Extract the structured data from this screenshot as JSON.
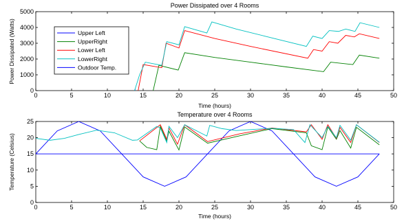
{
  "chart_data": [
    {
      "type": "line",
      "title": "Power Dissipated over 4 Rooms",
      "xlabel": "Time (hours)",
      "ylabel": "Power Dissipated (Watts)",
      "xlim": [
        0,
        50
      ],
      "ylim": [
        0,
        5000
      ],
      "xticks": [
        0,
        5,
        10,
        15,
        20,
        25,
        30,
        35,
        40,
        45,
        50
      ],
      "yticks": [
        0,
        1000,
        2000,
        3000,
        4000,
        5000
      ],
      "grid": false,
      "legend": {
        "position": "upper-left"
      },
      "series": [
        {
          "name": "Upper Left",
          "color": "#0000ff",
          "x": [
            13.8,
            13.9
          ],
          "y": [
            0,
            100
          ]
        },
        {
          "name": "UpperRight",
          "color": "#008000",
          "x": [
            16.4,
            17.2,
            19.9,
            20.8,
            25,
            30,
            35,
            40.2,
            41.2,
            44.3,
            45.2,
            48
          ],
          "y": [
            0,
            1600,
            1300,
            2400,
            2100,
            1800,
            1500,
            1200,
            1800,
            1650,
            2250,
            2050
          ]
        },
        {
          "name": "Lower Left",
          "color": "#ff0000",
          "x": [
            14.3,
            15.0,
            17.6,
            18.2,
            20.0,
            20.8,
            25,
            30,
            38.0,
            38.8,
            40.0,
            41.0,
            42.2,
            43.3,
            44.5,
            45.2,
            48
          ],
          "y": [
            0,
            1650,
            1450,
            3000,
            2700,
            3800,
            3300,
            2800,
            2050,
            2600,
            2500,
            3100,
            3000,
            3500,
            3400,
            3600,
            3300
          ]
        },
        {
          "name": "LowerRight",
          "color": "#00c0c0",
          "x": [
            13.8,
            14.5,
            15.3,
            17.6,
            18.3,
            20.0,
            20.8,
            23.9,
            24.6,
            28,
            32,
            37.8,
            38.7,
            40.0,
            41.0,
            42.3,
            43.3,
            44.6,
            45.3,
            48
          ],
          "y": [
            0,
            1000,
            1800,
            1600,
            3100,
            2900,
            4050,
            3650,
            4350,
            3900,
            3450,
            2800,
            3450,
            3300,
            3800,
            3750,
            3900,
            3750,
            4300,
            4000
          ]
        }
      ]
    },
    {
      "type": "line",
      "title": "Temperature over 4 Rooms",
      "xlabel": "Time (hours)",
      "ylabel": "Temperature (Celsius)",
      "xlim": [
        0,
        50
      ],
      "ylim": [
        0,
        25
      ],
      "xticks": [
        0,
        5,
        10,
        15,
        20,
        25,
        30,
        35,
        40,
        45,
        50
      ],
      "yticks": [
        0,
        5,
        10,
        15,
        20,
        25
      ],
      "grid": false,
      "series": [
        {
          "name": "Outdoor Temp.",
          "color": "#0000ff",
          "x": [
            0,
            3,
            6,
            9,
            12,
            15,
            18,
            21,
            24,
            27,
            30,
            33,
            36,
            39,
            42,
            45,
            48
          ],
          "y": [
            15,
            22.1,
            25,
            22.1,
            15,
            7.9,
            5,
            7.9,
            15,
            22.1,
            25,
            22.1,
            15,
            7.9,
            5,
            7.9,
            15
          ]
        },
        {
          "name": "Upper Left",
          "color": "#0000ff",
          "x": [
            0,
            48
          ],
          "y": [
            15,
            15
          ]
        },
        {
          "name": "UpperRight",
          "color": "#008000",
          "x": [
            14.5,
            15.5,
            16.9,
            17.4,
            18.3,
            18.6,
            20.0,
            20.8,
            24.0,
            28.5,
            33,
            37.8,
            38.5,
            40.0,
            40.8,
            42.0,
            42.5,
            44.0,
            44.8,
            48
          ],
          "y": [
            19,
            17,
            16.3,
            23.5,
            19,
            22,
            16.2,
            23.3,
            18.3,
            20.6,
            22.8,
            21.5,
            17.5,
            16.3,
            23.3,
            19.5,
            22.2,
            16.8,
            23.2,
            17.8
          ]
        },
        {
          "name": "Lower Left",
          "color": "#ff0000",
          "x": [
            14.5,
            17.4,
            18.3,
            18.6,
            19.8,
            20.8,
            24.0,
            28.5,
            33,
            37.8,
            38.5,
            40.0,
            40.8,
            42.0,
            42.5,
            44.0,
            44.8,
            48
          ],
          "y": [
            19,
            24,
            19.5,
            23,
            18,
            24,
            18.8,
            21.2,
            23,
            21.8,
            24,
            19.5,
            24,
            19.8,
            23.2,
            18.5,
            24,
            18.5
          ]
        },
        {
          "name": "LowerRight",
          "color": "#00c0c0",
          "x": [
            0,
            2,
            4,
            6,
            8.5,
            11,
            13.5,
            14.2,
            16.9,
            17.4,
            18.3,
            18.6,
            19.8,
            20.8,
            23.9,
            24.3,
            26,
            28,
            30,
            33,
            36,
            37.6,
            38.3,
            40.0,
            40.8,
            42.0,
            42.5,
            44.0,
            44.8,
            48
          ],
          "y": [
            19.8,
            19.2,
            19.8,
            21,
            22.3,
            21.5,
            19.2,
            19.3,
            23.5,
            23,
            18.5,
            23.5,
            20,
            24,
            20.5,
            23.8,
            22.8,
            22.2,
            22.5,
            22.9,
            22.5,
            18.5,
            24,
            20,
            23.5,
            20,
            23.8,
            19.2,
            24,
            18.6
          ]
        }
      ]
    }
  ]
}
